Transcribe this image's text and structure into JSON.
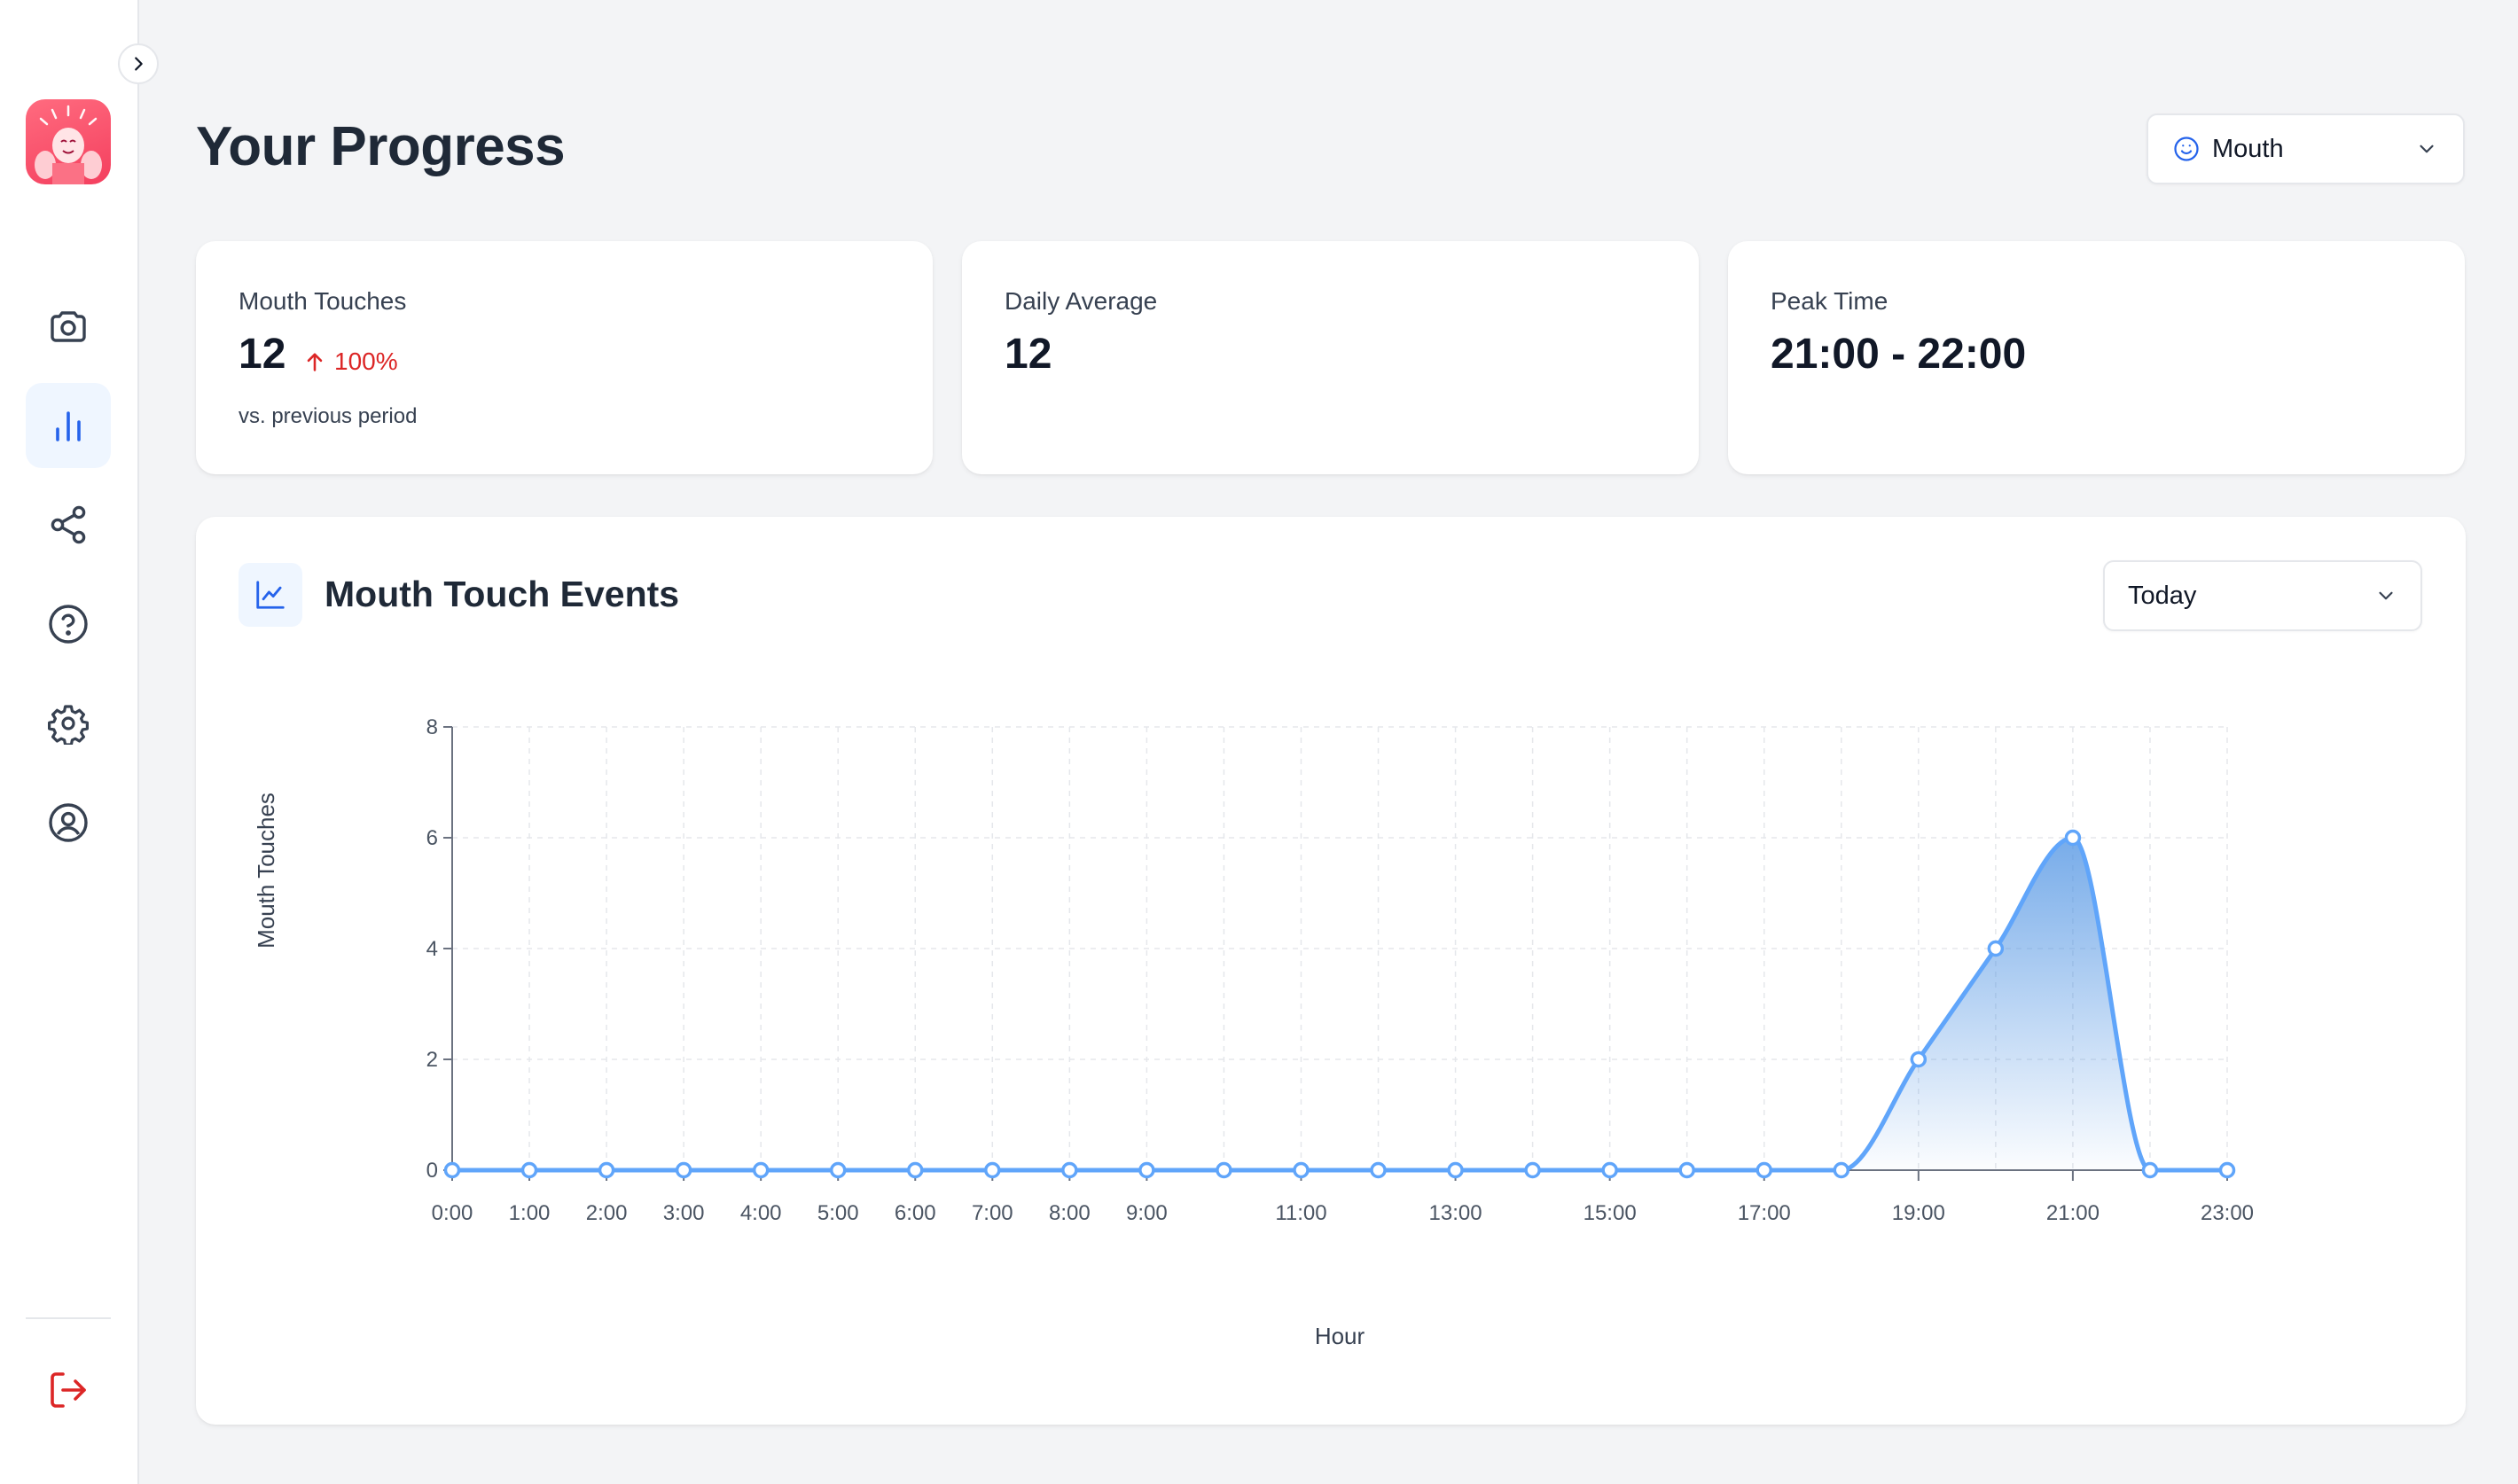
{
  "page": {
    "title": "Your Progress"
  },
  "region_select": {
    "value": "Mouth",
    "icon": "smile-icon"
  },
  "stats": [
    {
      "label": "Mouth Touches",
      "value": "12",
      "change": "100%",
      "change_direction": "up",
      "sub": "vs. previous period"
    },
    {
      "label": "Daily Average",
      "value": "12"
    },
    {
      "label": "Peak Time",
      "value": "21:00 - 22:00"
    }
  ],
  "chart_panel": {
    "title": "Mouth Touch Events",
    "range_value": "Today"
  },
  "sidebar": {
    "items": [
      "camera-icon",
      "bar-chart-icon",
      "share-icon",
      "help-icon",
      "settings-icon",
      "user-icon"
    ],
    "active": "bar-chart-icon",
    "logout": "logout-icon"
  },
  "colors": {
    "accent": "#4a90e2",
    "line": "#60a5fa",
    "negative": "#dc2626",
    "logout": "#dc2626"
  },
  "chart_data": {
    "type": "area",
    "xlabel": "Hour",
    "ylabel": "Mouth Touches",
    "x": [
      "0:00",
      "1:00",
      "2:00",
      "3:00",
      "4:00",
      "5:00",
      "6:00",
      "7:00",
      "8:00",
      "9:00",
      "10:00",
      "11:00",
      "12:00",
      "13:00",
      "14:00",
      "15:00",
      "16:00",
      "17:00",
      "18:00",
      "19:00",
      "20:00",
      "21:00",
      "22:00",
      "23:00"
    ],
    "x_tick_labels": [
      "0:00",
      "1:00",
      "2:00",
      "3:00",
      "4:00",
      "5:00",
      "6:00",
      "7:00",
      "8:00",
      "9:00",
      "",
      "11:00",
      "",
      "13:00",
      "",
      "15:00",
      "",
      "17:00",
      "",
      "19:00",
      "",
      "21:00",
      "",
      "23:00"
    ],
    "values": [
      0,
      0,
      0,
      0,
      0,
      0,
      0,
      0,
      0,
      0,
      0,
      0,
      0,
      0,
      0,
      0,
      0,
      0,
      0,
      2,
      4,
      6,
      0,
      0
    ],
    "ylim": [
      0,
      8
    ],
    "yticks": [
      0,
      2,
      4,
      6,
      8
    ],
    "grid": true
  }
}
